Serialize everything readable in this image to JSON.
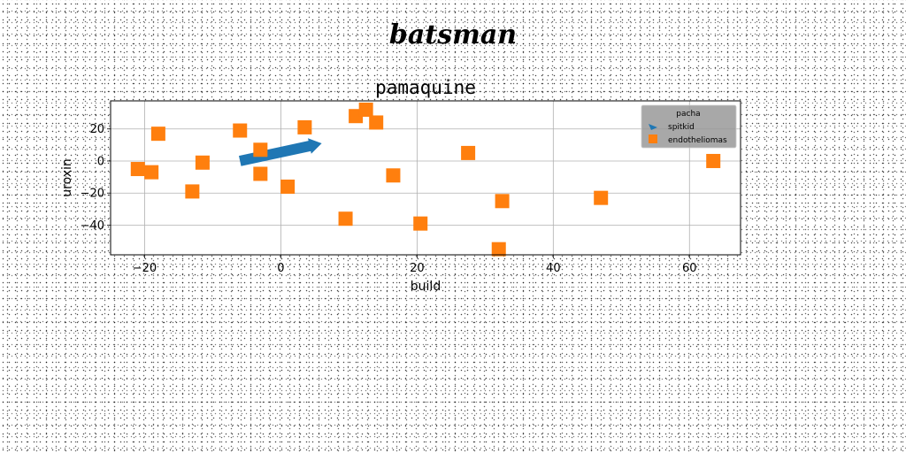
{
  "figure": {
    "suptitle": "batsman"
  },
  "chart_data": {
    "type": "scatter",
    "title": "pamaquine",
    "xlabel": "build",
    "ylabel": "uroxin",
    "xlim": [
      -25,
      67.5
    ],
    "ylim": [
      -58.5,
      37.5
    ],
    "xticks": [
      -20,
      0,
      20,
      40,
      60
    ],
    "yticks": [
      -40,
      -20,
      0,
      20
    ],
    "grid": true,
    "legend": {
      "title": "pacha",
      "placement": "top-right"
    },
    "series": [
      {
        "name": "spitkid",
        "marker": "arrow",
        "color": "#1f77b4",
        "points": [
          [
            -6,
            0
          ],
          [
            6,
            11
          ]
        ]
      },
      {
        "name": "endotheliomas",
        "marker": "square",
        "color": "#ff7f0e",
        "points": [
          [
            -21,
            -5
          ],
          [
            -19,
            -7
          ],
          [
            -18,
            17
          ],
          [
            -13,
            -19
          ],
          [
            -11.5,
            -1
          ],
          [
            -6,
            19
          ],
          [
            -3,
            7
          ],
          [
            -3,
            -8
          ],
          [
            1,
            -16
          ],
          [
            3.5,
            21
          ],
          [
            9.5,
            -36
          ],
          [
            11,
            28
          ],
          [
            12.5,
            32
          ],
          [
            14,
            24
          ],
          [
            16.5,
            -9
          ],
          [
            20.5,
            -39
          ],
          [
            27.5,
            5
          ],
          [
            32,
            -55
          ],
          [
            32.5,
            -25
          ],
          [
            47,
            -23
          ],
          [
            63.5,
            0
          ]
        ]
      }
    ]
  }
}
